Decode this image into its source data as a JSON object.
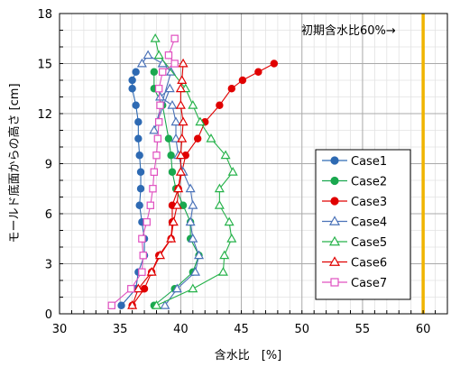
{
  "chart_data": {
    "type": "scatter",
    "xlabel": "含水比　[%]",
    "ylabel": "モールド底面からの高さ [cm]",
    "xlim": [
      30,
      62
    ],
    "ylim": [
      0,
      18
    ],
    "xticks": [
      30,
      35,
      40,
      45,
      50,
      55,
      60
    ],
    "yticks": [
      0,
      3,
      6,
      9,
      12,
      15,
      18
    ],
    "grid": true,
    "legend_position": "right",
    "annotation": "初期含水比60%→",
    "reference_line": {
      "x": 60,
      "color": "#f0b400"
    },
    "series": [
      {
        "name": "Case1",
        "color": "#2e6ab3",
        "marker": "circle",
        "filled": true,
        "x": [
          35.1,
          36.3,
          36.5,
          37.0,
          37.0,
          36.8,
          36.6,
          36.7,
          36.7,
          36.6,
          36.5,
          36.5,
          36.3,
          36.0,
          36.0,
          36.3
        ],
        "y": [
          0.5,
          1.5,
          2.5,
          3.5,
          4.5,
          5.5,
          6.5,
          7.5,
          8.5,
          9.5,
          10.5,
          11.5,
          12.5,
          13.5,
          14,
          14.5
        ]
      },
      {
        "name": "Case2",
        "color": "#1aa84f",
        "marker": "circle",
        "filled": true,
        "x": [
          37.8,
          39.5,
          41.0,
          41.5,
          40.8,
          40.8,
          40.2,
          39.6,
          39.3,
          39.2,
          39.0,
          38.5,
          37.8,
          37.8
        ],
        "y": [
          0.5,
          1.5,
          2.5,
          3.5,
          4.5,
          5.5,
          6.5,
          7.5,
          8.5,
          9.5,
          10.5,
          12.5,
          13.5,
          14.5
        ]
      },
      {
        "name": "Case3",
        "color": "#e00000",
        "marker": "circle",
        "filled": true,
        "x": [
          36.0,
          37.0,
          37.6,
          38.2,
          39.2,
          39.3,
          39.3,
          39.8,
          40.1,
          40.4,
          41.4,
          42.0,
          43.2,
          44.2,
          45.1,
          46.4,
          47.7
        ],
        "y": [
          0.5,
          1.5,
          2.5,
          3.5,
          4.5,
          5.5,
          6.5,
          7.5,
          8.5,
          9.5,
          10.5,
          11.5,
          12.5,
          13.5,
          14,
          14.5,
          15
        ]
      },
      {
        "name": "Case4",
        "color": "#4a72b8",
        "marker": "triangle",
        "filled": false,
        "x": [
          38.7,
          39.7,
          41.2,
          41.5,
          41.0,
          40.8,
          41.0,
          40.8,
          40.2,
          39.8,
          39.6,
          39.6,
          39.3,
          38.3,
          39.1,
          37.8,
          39.2,
          38.5,
          37.3,
          36.8
        ],
        "y": [
          0.5,
          1.5,
          2.5,
          3.5,
          4.5,
          5.5,
          6.5,
          7.5,
          8.5,
          9.5,
          10.5,
          11.5,
          12.5,
          13,
          13.5,
          11,
          14.5,
          15,
          15.5,
          15
        ]
      },
      {
        "name": "Case5",
        "color": "#26b24a",
        "marker": "triangle",
        "filled": false,
        "x": [
          38.0,
          41.0,
          43.5,
          43.6,
          44.2,
          44.0,
          43.2,
          43.2,
          44.3,
          43.7,
          42.5,
          41.6,
          41.0,
          40.4,
          38.2,
          37.9
        ],
        "y": [
          0.5,
          1.5,
          2.5,
          3.5,
          4.5,
          5.5,
          6.5,
          7.5,
          8.5,
          9.5,
          10.5,
          11.5,
          12.5,
          13.5,
          15.5,
          16.5
        ]
      },
      {
        "name": "Case6",
        "color": "#e00000",
        "marker": "triangle",
        "filled": false,
        "x": [
          36.0,
          36.5,
          37.6,
          38.3,
          39.2,
          39.4,
          39.7,
          39.8,
          40.0,
          40.0,
          40.1,
          40.2,
          40.0,
          40.0,
          40.1,
          40.2
        ],
        "y": [
          0.5,
          1.5,
          2.5,
          3.5,
          4.5,
          5.5,
          6.5,
          7.5,
          8.5,
          9.5,
          10.5,
          11.5,
          12.5,
          13.5,
          14,
          15
        ]
      },
      {
        "name": "Case7",
        "color": "#e050c0",
        "marker": "square",
        "filled": false,
        "x": [
          34.3,
          35.9,
          36.8,
          36.9,
          36.8,
          37.2,
          37.5,
          37.7,
          37.8,
          38.0,
          38.1,
          38.2,
          38.3,
          38.2,
          38.5,
          39.5,
          39.0,
          39.5
        ],
        "y": [
          0.5,
          1.5,
          2.5,
          3.5,
          4.5,
          5.5,
          6.5,
          7.5,
          8.5,
          9.5,
          10.5,
          11.5,
          12.5,
          13.5,
          14.5,
          15,
          15.5,
          16.5
        ]
      }
    ]
  }
}
